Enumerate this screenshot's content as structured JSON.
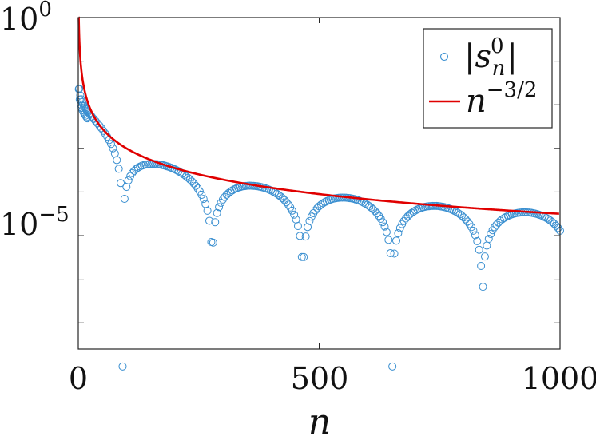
{
  "colors": {
    "scatter": "#3a8fd0",
    "line": "#e00000",
    "axis": "#262626"
  },
  "chart_data": {
    "type": "scatter",
    "title": "",
    "xlabel": "n",
    "ylabel": "",
    "xlim": [
      0,
      1000
    ],
    "ylim_log10": [
      -7.6,
      0
    ],
    "yscale": "log",
    "grid": false,
    "legend_position": "top-right",
    "xticks": [
      {
        "value": 0,
        "label": "0"
      },
      {
        "value": 500,
        "label": "500"
      },
      {
        "value": 1000,
        "label": "1000"
      }
    ],
    "yticks": [
      {
        "log10": 0,
        "base": "10",
        "exp": "0"
      },
      {
        "log10": -5,
        "base": "10",
        "exp": "−5"
      }
    ],
    "series": [
      {
        "name": "|s_n^0|",
        "kind": "scatter",
        "envelope_exponent": -1.5,
        "spacing": 4,
        "oscillation_branches": 2,
        "zero_crossings_n": [
          92,
          278,
          466,
          652,
          839
        ]
      },
      {
        "name": "n^{-3/2}",
        "kind": "line",
        "exponent": -1.5
      }
    ]
  },
  "legend": {
    "s_abs_left": "|",
    "s_base": "s",
    "s_sup": "0",
    "s_sub": "n",
    "s_abs_right": "|",
    "line_base": "n",
    "line_sup": "−3/2"
  }
}
